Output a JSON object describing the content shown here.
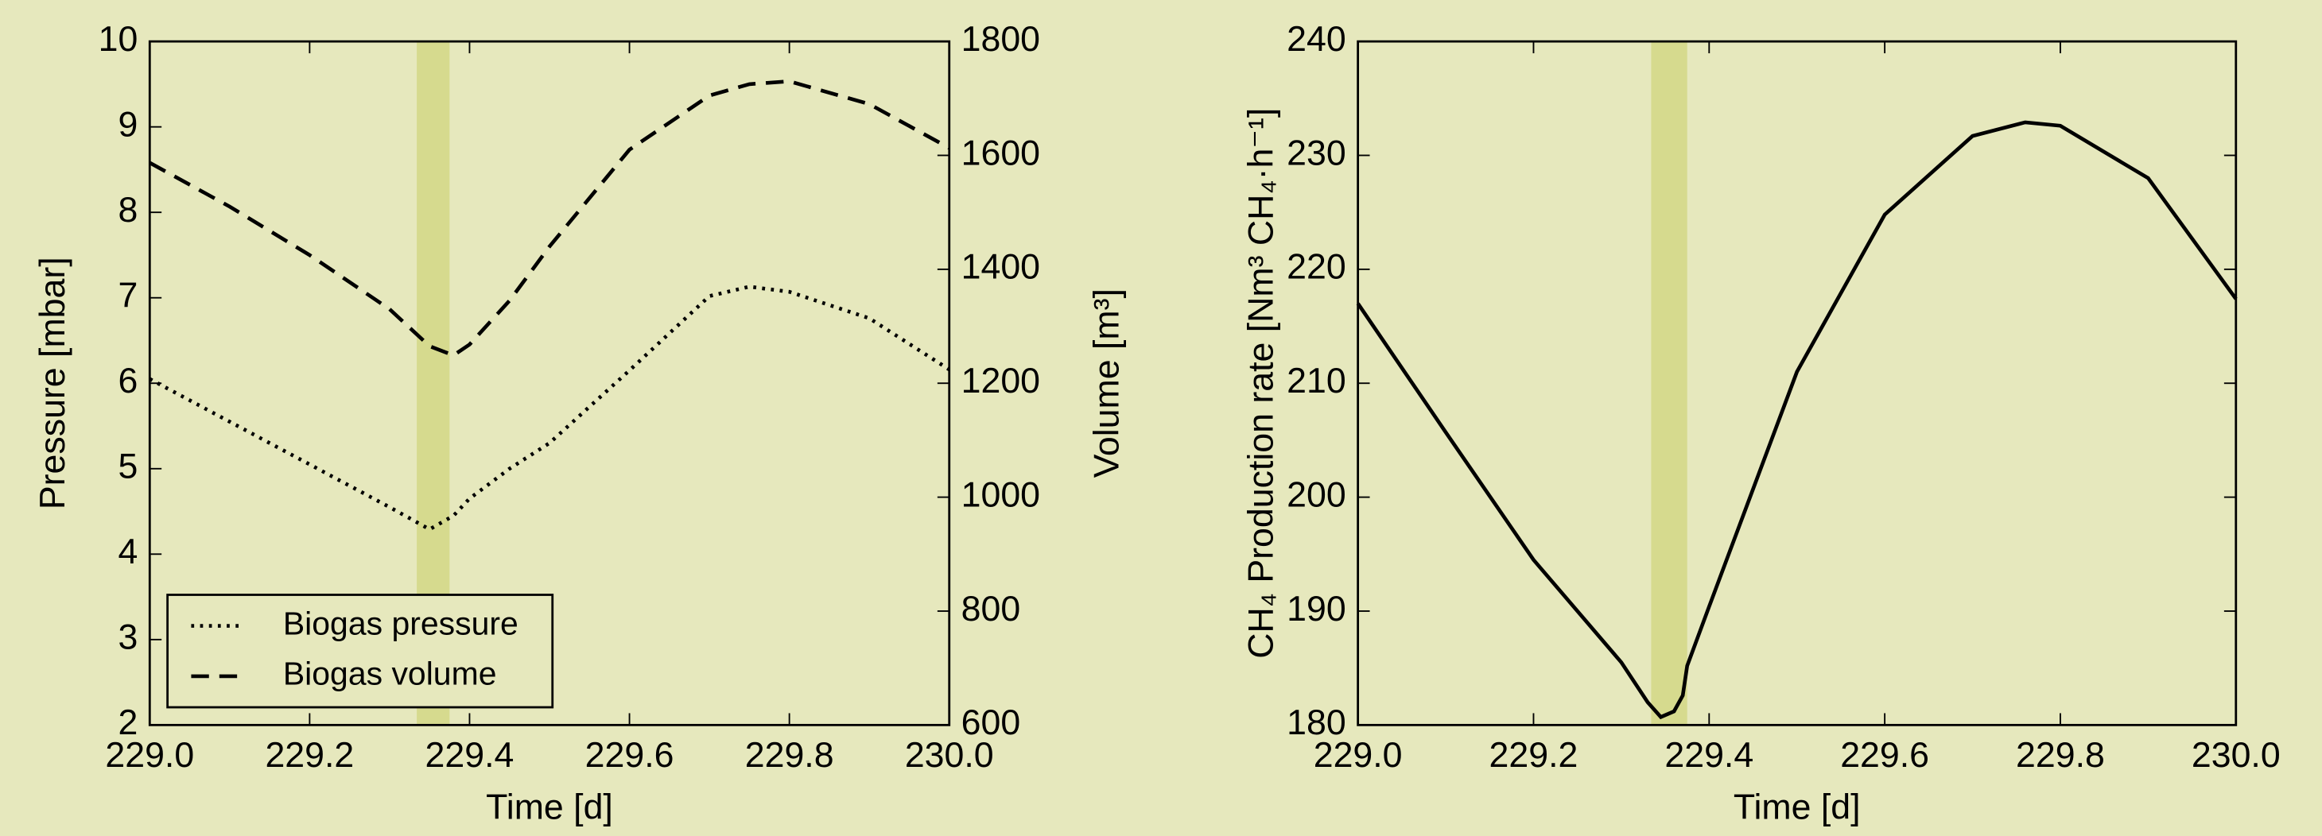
{
  "chart_data": [
    {
      "type": "line",
      "xlabel": "Time [d]",
      "ylabel": "Pressure [mbar]",
      "y2label": "Volume [m³]",
      "x": [
        229.0,
        229.1,
        229.2,
        229.3,
        229.35,
        229.38,
        229.4,
        229.45,
        229.5,
        229.6,
        229.7,
        229.75,
        229.8,
        229.9,
        230.0
      ],
      "series": [
        {
          "name": "Biogas pressure",
          "color": "#000000",
          "linestyle": "dotted",
          "values": [
            6.05,
            5.55,
            5.05,
            4.55,
            4.29,
            4.45,
            4.65,
            5.0,
            5.3,
            6.15,
            7.02,
            7.13,
            7.07,
            6.76,
            6.16
          ]
        },
        {
          "name": "Biogas volume",
          "color": "#000000",
          "linestyle": "dashed",
          "axis": "y2",
          "values": [
            1587,
            1510,
            1425,
            1330,
            1265,
            1249,
            1268,
            1345,
            1440,
            1610,
            1705,
            1725,
            1730,
            1690,
            1613
          ]
        }
      ],
      "xlim": [
        229.0,
        230.0
      ],
      "xticks": [
        {
          "value": 229.0,
          "label": "229.0"
        },
        229.2,
        229.4,
        229.6,
        229.8,
        {
          "value": 230.0,
          "label": "230.0"
        }
      ],
      "ylim": [
        2,
        10
      ],
      "yticks": [
        2,
        3,
        4,
        5,
        6,
        7,
        8,
        9,
        10
      ],
      "y2lim": [
        600,
        1800
      ],
      "y2ticks": [
        600,
        800,
        1000,
        1200,
        1400,
        1600,
        1800
      ],
      "highlight": {
        "xlim": [
          229.334,
          229.375
        ],
        "color": "#d6da8e"
      },
      "legend": "lower left"
    },
    {
      "type": "line",
      "xlabel": "Time [d]",
      "ylabel": "CH₄ Production rate [Nm³ CH₄·h⁻¹]",
      "x": [
        229.0,
        229.1,
        229.2,
        229.3,
        229.33,
        229.345,
        229.36,
        229.37,
        229.375,
        229.4,
        229.5,
        229.6,
        229.7,
        229.76,
        229.8,
        229.9,
        230.0
      ],
      "series": [
        {
          "name": "CH₄ Production rate",
          "color": "#000000",
          "linestyle": "solid",
          "values": [
            217,
            205.7,
            194.5,
            185.5,
            182,
            180.7,
            181.2,
            182.6,
            185.2,
            190.4,
            211,
            224.8,
            231.7,
            232.9,
            232.6,
            228,
            217.4
          ]
        }
      ],
      "xlim": [
        229.0,
        230.0
      ],
      "xticks": [
        {
          "value": 229.0,
          "label": "229.0"
        },
        229.2,
        229.4,
        229.6,
        229.8,
        {
          "value": 230.0,
          "label": "230.0"
        }
      ],
      "ylim": [
        180,
        240
      ],
      "yticks": [
        180,
        190,
        200,
        210,
        220,
        230,
        240
      ],
      "highlight": {
        "xlim": [
          229.334,
          229.375
        ],
        "color": "#d6da8e"
      }
    }
  ]
}
